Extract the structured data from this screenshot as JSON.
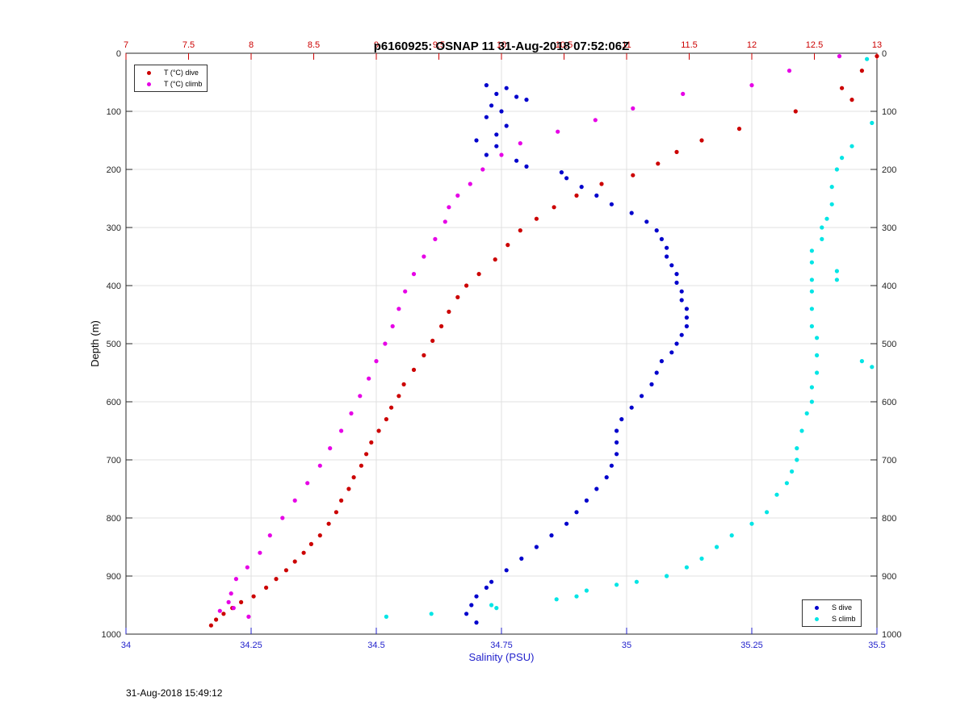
{
  "chart_data": {
    "type": "scatter",
    "title": "p6160925: OSNAP 11 31-Aug-2018 07:52:06Z",
    "ylabel": "Depth (m)",
    "xlabel_bottom": "Salinity (PSU)",
    "xlabel_top": "",
    "ylim": [
      1000,
      0
    ],
    "xlim_bottom": [
      34,
      35.5
    ],
    "xlim_top": [
      7,
      13
    ],
    "y_ticks": [
      "0",
      "100",
      "200",
      "300",
      "400",
      "500",
      "600",
      "700",
      "800",
      "900",
      "1000"
    ],
    "x_ticks_bottom": [
      "34",
      "34.25",
      "34.5",
      "34.75",
      "35",
      "35.25",
      "35.5"
    ],
    "x_ticks_top": [
      "7",
      "7.5",
      "8",
      "8.5",
      "9",
      "9.5",
      "10",
      "10.5",
      "11",
      "11.5",
      "12",
      "12.5",
      "13"
    ],
    "grid": true,
    "legend_top": {
      "placement": "top-left",
      "entries": [
        "T (°C) dive",
        "T (°C) climb"
      ]
    },
    "legend_bottom": {
      "placement": "bottom-right",
      "entries": [
        "S dive",
        "S climb"
      ]
    },
    "series": [
      {
        "name": "T (°C) dive",
        "axis": "top",
        "color": "#cc0000",
        "x": [
          13.0,
          12.88,
          12.72,
          12.8,
          12.35,
          11.9,
          11.6,
          11.4,
          11.25,
          11.05,
          10.8,
          10.6,
          10.42,
          10.28,
          10.15,
          10.05,
          9.95,
          9.82,
          9.72,
          9.65,
          9.58,
          9.52,
          9.45,
          9.38,
          9.3,
          9.22,
          9.18,
          9.12,
          9.08,
          9.02,
          8.96,
          8.92,
          8.88,
          8.82,
          8.78,
          8.72,
          8.68,
          8.62,
          8.55,
          8.48,
          8.42,
          8.35,
          8.28,
          8.2,
          8.12,
          8.02,
          7.92,
          7.85,
          7.78,
          7.72,
          7.68
        ],
        "y": [
          5,
          30,
          60,
          80,
          100,
          130,
          150,
          170,
          190,
          210,
          225,
          245,
          265,
          285,
          305,
          330,
          355,
          380,
          400,
          420,
          445,
          470,
          495,
          520,
          545,
          570,
          590,
          610,
          630,
          650,
          670,
          690,
          710,
          730,
          750,
          770,
          790,
          810,
          830,
          845,
          860,
          875,
          890,
          905,
          920,
          935,
          945,
          955,
          965,
          975,
          985
        ]
      },
      {
        "name": "T (°C) climb",
        "axis": "top",
        "color": "#e600e6",
        "x": [
          12.7,
          12.3,
          12.0,
          11.45,
          11.05,
          10.75,
          10.45,
          10.15,
          10.0,
          9.85,
          9.75,
          9.65,
          9.58,
          9.55,
          9.47,
          9.38,
          9.3,
          9.23,
          9.18,
          9.13,
          9.07,
          9.0,
          8.94,
          8.87,
          8.8,
          8.72,
          8.63,
          8.55,
          8.45,
          8.35,
          8.25,
          8.15,
          8.07,
          7.97,
          7.88,
          7.84,
          7.82,
          7.86,
          7.75,
          7.98
        ],
        "y": [
          5,
          30,
          55,
          70,
          95,
          115,
          135,
          155,
          175,
          200,
          225,
          245,
          265,
          290,
          320,
          350,
          380,
          410,
          440,
          470,
          500,
          530,
          560,
          590,
          620,
          650,
          680,
          710,
          740,
          770,
          800,
          830,
          860,
          885,
          905,
          930,
          945,
          955,
          960,
          970
        ]
      },
      {
        "name": "S dive",
        "axis": "bottom",
        "color": "#0000cc",
        "x": [
          34.72,
          34.76,
          34.74,
          34.78,
          34.8,
          34.73,
          34.75,
          34.72,
          34.76,
          34.74,
          34.7,
          34.74,
          34.72,
          34.78,
          34.8,
          34.87,
          34.88,
          34.91,
          34.94,
          34.97,
          35.01,
          35.04,
          35.06,
          35.07,
          35.08,
          35.08,
          35.09,
          35.1,
          35.1,
          35.11,
          35.11,
          35.12,
          35.12,
          35.12,
          35.11,
          35.1,
          35.09,
          35.07,
          35.06,
          35.05,
          35.03,
          35.01,
          34.99,
          34.98,
          34.98,
          34.98,
          34.97,
          34.96,
          34.94,
          34.92,
          34.9,
          34.88,
          34.85,
          34.82,
          34.79,
          34.76,
          34.73,
          34.72,
          34.7,
          34.69,
          34.68,
          34.7
        ],
        "y": [
          55,
          60,
          70,
          75,
          80,
          90,
          100,
          110,
          125,
          140,
          150,
          160,
          175,
          185,
          195,
          205,
          215,
          230,
          245,
          260,
          275,
          290,
          305,
          320,
          335,
          350,
          365,
          380,
          395,
          410,
          425,
          440,
          455,
          470,
          485,
          500,
          515,
          530,
          550,
          570,
          590,
          610,
          630,
          650,
          670,
          690,
          710,
          730,
          750,
          770,
          790,
          810,
          830,
          850,
          870,
          890,
          910,
          920,
          935,
          950,
          965,
          980
        ]
      },
      {
        "name": "S climb",
        "axis": "bottom",
        "color": "#00e5e5",
        "x": [
          35.48,
          35.49,
          35.45,
          35.43,
          35.42,
          35.41,
          35.41,
          35.4,
          35.39,
          35.39,
          35.37,
          35.37,
          35.37,
          35.37,
          35.37,
          35.37,
          35.38,
          35.38,
          35.38,
          35.37,
          35.37,
          35.36,
          35.35,
          35.34,
          35.34,
          35.33,
          35.32,
          35.3,
          35.28,
          35.25,
          35.21,
          35.18,
          35.15,
          35.12,
          35.08,
          35.02,
          34.98,
          34.92,
          34.9,
          34.86,
          34.73,
          34.74,
          34.61,
          34.52,
          35.47,
          35.42,
          35.49,
          35.42
        ],
        "y": [
          10,
          120,
          160,
          180,
          200,
          230,
          260,
          285,
          300,
          320,
          340,
          360,
          390,
          410,
          440,
          470,
          490,
          520,
          550,
          575,
          600,
          620,
          650,
          680,
          700,
          720,
          740,
          760,
          790,
          810,
          830,
          850,
          870,
          885,
          900,
          910,
          915,
          925,
          935,
          940,
          950,
          955,
          965,
          970,
          530,
          375,
          540,
          390
        ]
      }
    ]
  },
  "footer_timestamp": "31-Aug-2018 15:49:12"
}
